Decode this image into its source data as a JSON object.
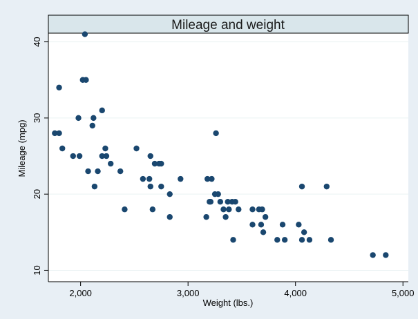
{
  "chart_data": {
    "type": "scatter",
    "title": "Mileage and weight",
    "xlabel": "Weight (lbs.)",
    "ylabel": "Mileage (mpg)",
    "xlim": [
      1700,
      5050
    ],
    "ylim": [
      8.5,
      43.5
    ],
    "xticks": [
      2000,
      3000,
      4000,
      5000
    ],
    "xtick_labels": [
      "2,000",
      "3,000",
      "4,000",
      "5,000"
    ],
    "yticks": [
      10,
      20,
      30,
      40
    ],
    "ytick_labels": [
      "10",
      "20",
      "30",
      "40"
    ],
    "grid": "horizontal",
    "marker_color": "#1a476f",
    "plot_background": "#ffffff",
    "figure_background": "#e8eff5",
    "title_background": "#d9e6eb",
    "series": [
      {
        "points": [
          [
            1760,
            28
          ],
          [
            1800,
            28
          ],
          [
            1800,
            34
          ],
          [
            1830,
            26
          ],
          [
            1930,
            25
          ],
          [
            1980,
            30
          ],
          [
            1990,
            25
          ],
          [
            2020,
            35
          ],
          [
            2040,
            41
          ],
          [
            2050,
            35
          ],
          [
            2070,
            23
          ],
          [
            2110,
            29
          ],
          [
            2120,
            30
          ],
          [
            2130,
            21
          ],
          [
            2160,
            23
          ],
          [
            2200,
            25
          ],
          [
            2200,
            31
          ],
          [
            2230,
            26
          ],
          [
            2240,
            25
          ],
          [
            2280,
            24
          ],
          [
            2370,
            23
          ],
          [
            2410,
            18
          ],
          [
            2520,
            26
          ],
          [
            2580,
            22
          ],
          [
            2640,
            22
          ],
          [
            2650,
            25
          ],
          [
            2650,
            21
          ],
          [
            2670,
            18
          ],
          [
            2690,
            24
          ],
          [
            2730,
            24
          ],
          [
            2750,
            24
          ],
          [
            2750,
            21
          ],
          [
            2830,
            20
          ],
          [
            2830,
            17
          ],
          [
            2930,
            22
          ],
          [
            3170,
            17
          ],
          [
            3180,
            22
          ],
          [
            3200,
            19
          ],
          [
            3210,
            19
          ],
          [
            3220,
            22
          ],
          [
            3250,
            20
          ],
          [
            3260,
            28
          ],
          [
            3280,
            20
          ],
          [
            3300,
            19
          ],
          [
            3330,
            18
          ],
          [
            3350,
            17
          ],
          [
            3370,
            19
          ],
          [
            3380,
            18
          ],
          [
            3410,
            19
          ],
          [
            3420,
            14
          ],
          [
            3440,
            19
          ],
          [
            3470,
            18
          ],
          [
            3600,
            16
          ],
          [
            3600,
            18
          ],
          [
            3660,
            18
          ],
          [
            3680,
            16
          ],
          [
            3690,
            18
          ],
          [
            3700,
            15
          ],
          [
            3720,
            17
          ],
          [
            3830,
            14
          ],
          [
            3880,
            16
          ],
          [
            3900,
            14
          ],
          [
            4030,
            16
          ],
          [
            4060,
            21
          ],
          [
            4060,
            14
          ],
          [
            4080,
            15
          ],
          [
            4130,
            14
          ],
          [
            4290,
            21
          ],
          [
            4330,
            14
          ],
          [
            4720,
            12
          ],
          [
            4840,
            12
          ]
        ]
      }
    ]
  }
}
